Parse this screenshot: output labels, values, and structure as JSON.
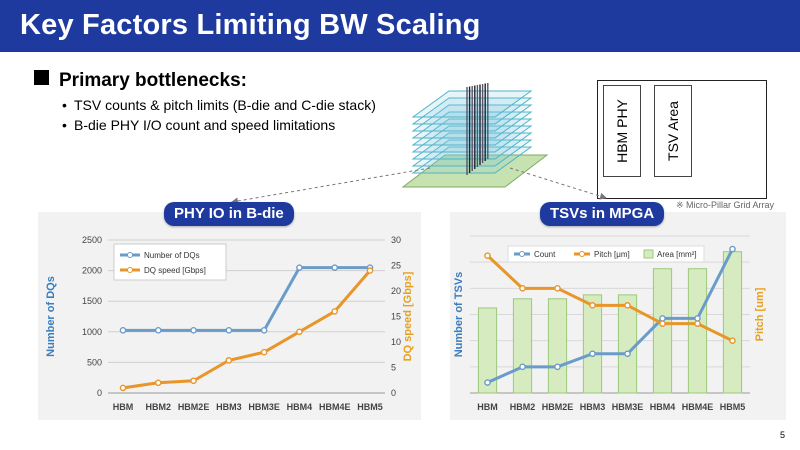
{
  "slide": {
    "title": "Key Factors Limiting BW Scaling",
    "section_heading": "Primary bottlenecks:",
    "bullets": [
      "TSV counts & pitch limits (B-die and C-die stack)",
      "B-die PHY I/O count and speed limitations"
    ],
    "page_number": "5"
  },
  "die_legend": {
    "labels": [
      "HBM PHY",
      "TSV Area"
    ],
    "note": "※ Micro-Pillar Grid Array"
  },
  "panels": {
    "left_title": "PHY IO in B-die",
    "right_title": "TSVs in MPGA"
  },
  "colors": {
    "title_bar": "#1f3a9e",
    "blue_series": "#6a9bc9",
    "orange_series": "#e8952a",
    "green_area": "#d6ecc0",
    "left_axis_label": "#3b7dbf",
    "right_axis_label": "#e8a020"
  },
  "chart_data": [
    {
      "type": "line",
      "categories": [
        "HBM",
        "HBM2",
        "HBM2E",
        "HBM3",
        "HBM3E",
        "HBM4",
        "HBM4E",
        "HBM5"
      ],
      "series": [
        {
          "name": "Number of DQs",
          "axis": "left",
          "values": [
            1024,
            1024,
            1024,
            1024,
            1024,
            2048,
            2048,
            2048
          ]
        },
        {
          "name": "DQ speed [Gbps]",
          "axis": "right",
          "values": [
            1,
            2,
            2.4,
            6.4,
            8,
            12,
            16,
            24
          ]
        }
      ],
      "ylabel_left": "Number of DQs",
      "ylabel_right": "DQ speed [Gbps]",
      "ylim_left": [
        0,
        2500
      ],
      "ylim_right": [
        0,
        30
      ],
      "yticks_left": [
        "0",
        "500",
        "1000",
        "1500",
        "2000",
        "2500"
      ],
      "yticks_right": [
        "0",
        "5",
        "10",
        "15",
        "20",
        "25",
        "30"
      ],
      "grid": true,
      "legend_position": "top-left"
    },
    {
      "type": "line",
      "categories": [
        "HBM",
        "HBM2",
        "HBM2E",
        "HBM3",
        "HBM3E",
        "HBM4",
        "HBM4E",
        "HBM5"
      ],
      "series": [
        {
          "name": "Count",
          "kind": "line",
          "values": [
            0.08,
            0.2,
            0.2,
            0.3,
            0.3,
            0.57,
            0.57,
            1.1
          ]
        },
        {
          "name": "Pitch [μm]",
          "kind": "line",
          "values": [
            1.05,
            0.8,
            0.8,
            0.67,
            0.67,
            0.53,
            0.53,
            0.4
          ]
        },
        {
          "name": "Area [mm²]",
          "kind": "bar",
          "values": [
            0.65,
            0.72,
            0.72,
            0.75,
            0.75,
            0.95,
            0.95,
            1.08
          ]
        }
      ],
      "ylabel_left": "Number of TSVs",
      "ylabel_right": "Pitch [um]",
      "ylim": [
        0,
        1.2
      ],
      "grid": true,
      "legend_position": "top"
    }
  ]
}
